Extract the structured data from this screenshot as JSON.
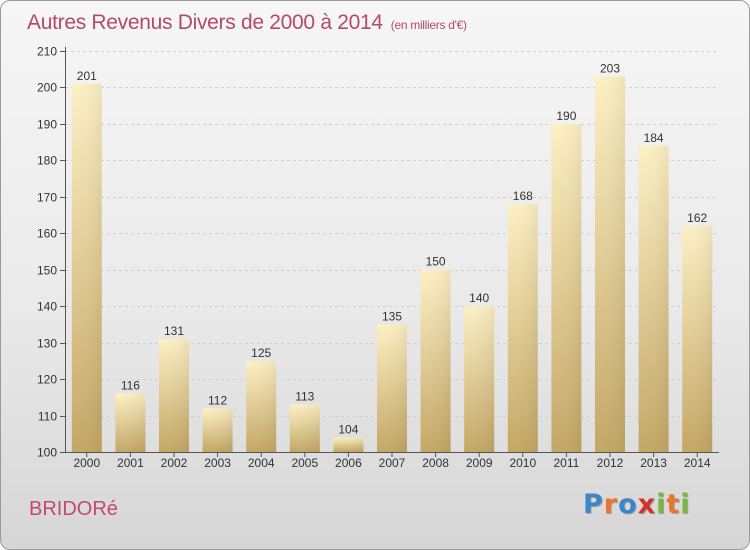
{
  "title": "Autres Revenus Divers de 2000 à 2014",
  "subtitle": "(en milliers d'€)",
  "place": "BRIDORé",
  "logo": {
    "text": "Proxiti",
    "letters": [
      {
        "ch": "P",
        "color": "#3a86c8"
      },
      {
        "ch": "r",
        "color": "#e8762c"
      },
      {
        "ch": "o",
        "color": "#3a86c8"
      },
      {
        "ch": "x",
        "color": "#d6302a"
      },
      {
        "ch": "i",
        "color": "#79b83a"
      },
      {
        "ch": "t",
        "color": "#e8762c"
      },
      {
        "ch": "i",
        "color": "#79b83a"
      }
    ]
  },
  "colors": {
    "title": "#b44a68",
    "bar_top": "#fdf0c4",
    "bar_bottom": "#c4a765",
    "grid": "#cfcfcf",
    "axis": "#555555"
  },
  "chart_data": {
    "type": "bar",
    "categories": [
      "2000",
      "2001",
      "2002",
      "2003",
      "2004",
      "2005",
      "2006",
      "2007",
      "2008",
      "2009",
      "2010",
      "2011",
      "2012",
      "2013",
      "2014"
    ],
    "values": [
      201,
      116,
      131,
      112,
      125,
      113,
      104,
      135,
      150,
      140,
      168,
      190,
      203,
      184,
      162
    ],
    "ylim": [
      100,
      210
    ],
    "yticks": [
      100,
      110,
      120,
      130,
      140,
      150,
      160,
      170,
      180,
      190,
      200,
      210
    ],
    "grid": true,
    "show_data_labels": true
  }
}
